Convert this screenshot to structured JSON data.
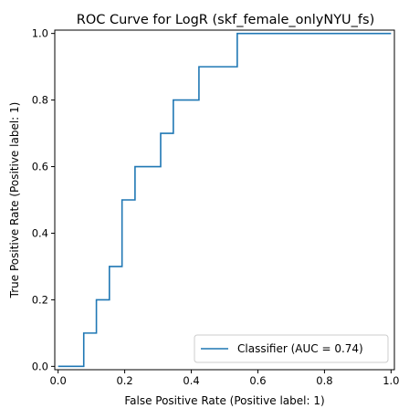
{
  "chart_data": {
    "type": "line",
    "title": "ROC Curve for LogR (skf_female_onlyNYU_fs)",
    "xlabel": "False Positive Rate (Positive label: 1)",
    "ylabel": "True Positive Rate (Positive label: 1)",
    "xlim": [
      -0.01,
      1.01
    ],
    "ylim": [
      -0.01,
      1.01
    ],
    "xticks": [
      0.0,
      0.2,
      0.4,
      0.6,
      0.8,
      1.0
    ],
    "yticks": [
      0.0,
      0.2,
      0.4,
      0.6,
      0.8,
      1.0
    ],
    "xtick_labels": [
      "0.0",
      "0.2",
      "0.4",
      "0.6",
      "0.8",
      "1.0"
    ],
    "ytick_labels": [
      "0.0",
      "0.2",
      "0.4",
      "0.6",
      "0.8",
      "1.0"
    ],
    "grid": false,
    "legend_position": "lower-right",
    "series": [
      {
        "name": "Classifier (AUC = 0.74)",
        "color": "#1f77b4",
        "step": true,
        "x": [
          0.0,
          0.077,
          0.077,
          0.115,
          0.115,
          0.154,
          0.154,
          0.192,
          0.192,
          0.231,
          0.231,
          0.308,
          0.308,
          0.346,
          0.346,
          0.423,
          0.423,
          0.538,
          0.538,
          1.0
        ],
        "y": [
          0.0,
          0.0,
          0.1,
          0.1,
          0.2,
          0.2,
          0.3,
          0.3,
          0.5,
          0.5,
          0.6,
          0.6,
          0.7,
          0.7,
          0.8,
          0.8,
          0.9,
          0.9,
          1.0,
          1.0
        ]
      }
    ]
  }
}
